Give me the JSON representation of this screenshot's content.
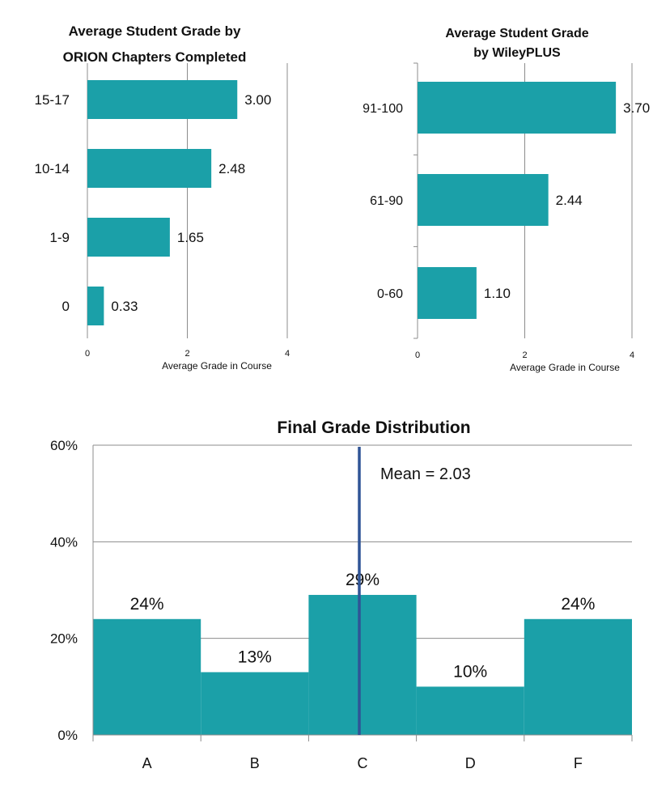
{
  "bar_color": "#1ba0a8",
  "mean_line_color": "#2f5496",
  "chart_data": [
    {
      "type": "bar",
      "orientation": "horizontal",
      "title_lines": [
        "Average Student Grade by",
        "ORION Chapters Completed"
      ],
      "categories": [
        "15-17",
        "10-14",
        "1-9",
        "0"
      ],
      "values": [
        3.0,
        2.48,
        1.65,
        0.33
      ],
      "value_labels": [
        "3.00",
        "2.48",
        "1.65",
        "0.33"
      ],
      "xlabel": "Average Grade in Course",
      "xlim": [
        0,
        4
      ],
      "xticks": [
        "0",
        "2",
        "4"
      ],
      "grid": true
    },
    {
      "type": "bar",
      "orientation": "horizontal",
      "title_lines": [
        "Average Student Grade",
        "by WileyPLUS"
      ],
      "categories": [
        "91-100",
        "61-90",
        "0-60"
      ],
      "values": [
        3.7,
        2.44,
        1.1
      ],
      "value_labels": [
        "3.70",
        "2.44",
        "1.10"
      ],
      "xlabel": "Average Grade in Course",
      "xlim": [
        0,
        4
      ],
      "xticks": [
        "0",
        "2",
        "4"
      ],
      "grid": true
    },
    {
      "type": "bar",
      "orientation": "vertical",
      "title": "Final Grade Distribution",
      "categories": [
        "A",
        "B",
        "C",
        "D",
        "F"
      ],
      "values": [
        24,
        13,
        29,
        10,
        24
      ],
      "value_labels": [
        "24%",
        "13%",
        "29%",
        "10%",
        "24%"
      ],
      "ylim": [
        0,
        60
      ],
      "yticks": [
        "0%",
        "20%",
        "40%",
        "60%"
      ],
      "grid": true,
      "annotation": {
        "text": "Mean = 2.03",
        "x_value": 2.03
      }
    }
  ]
}
